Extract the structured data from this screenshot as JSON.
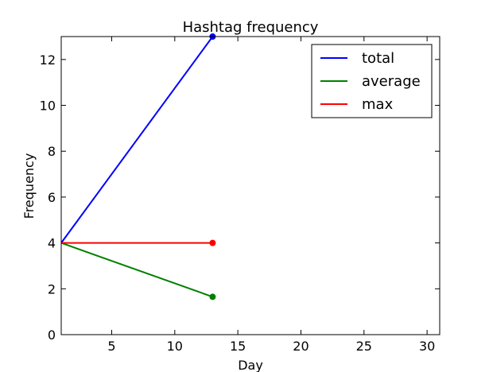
{
  "chart_data": {
    "type": "line",
    "title": "Hashtag frequency",
    "xlabel": "Day",
    "ylabel": "Frequency",
    "xlim": [
      1,
      31
    ],
    "ylim": [
      0,
      13
    ],
    "xticks": [
      5,
      10,
      15,
      20,
      25,
      30
    ],
    "yticks": [
      0,
      2,
      4,
      6,
      8,
      10,
      12
    ],
    "grid": false,
    "legend_position": "top-right",
    "series": [
      {
        "name": "total",
        "color": "#0000ff",
        "x": [
          1,
          13
        ],
        "y": [
          4,
          13
        ]
      },
      {
        "name": "average",
        "color": "#008000",
        "x": [
          1,
          13
        ],
        "y": [
          4,
          1.65
        ]
      },
      {
        "name": "max",
        "color": "#ff0000",
        "x": [
          1,
          13
        ],
        "y": [
          4,
          4
        ]
      }
    ]
  }
}
